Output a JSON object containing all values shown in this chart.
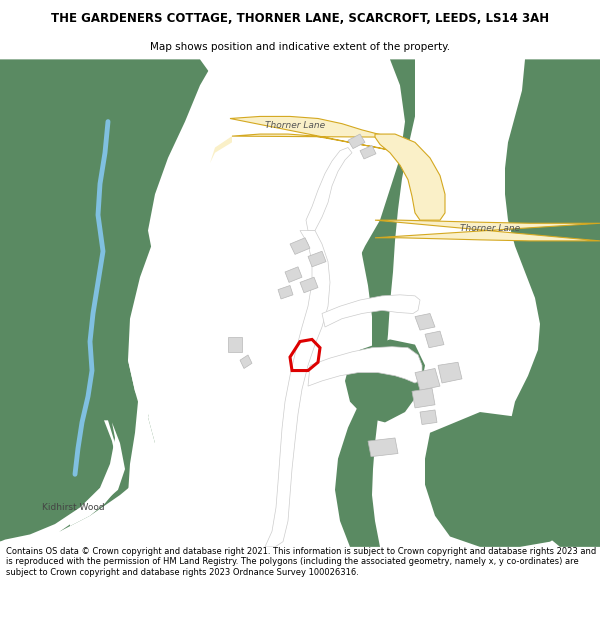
{
  "title_line1": "THE GARDENERS COTTAGE, THORNER LANE, SCARCROFT, LEEDS, LS14 3AH",
  "title_line2": "Map shows position and indicative extent of the property.",
  "footer_text": "Contains OS data © Crown copyright and database right 2021. This information is subject to Crown copyright and database rights 2023 and is reproduced with the permission of HM Land Registry. The polygons (including the associated geometry, namely x, y co-ordinates) are subject to Crown copyright and database rights 2023 Ordnance Survey 100026316.",
  "bg_color": "#ffffff",
  "map_bg": "#ffffff",
  "green_color": "#5a8a62",
  "road_fill": "#faf0c8",
  "road_border": "#d4a820",
  "building_color": "#d8d8d8",
  "building_border": "#b8b8b8",
  "water_color": "#80c0e0",
  "red_color": "#dd0000",
  "white_color": "#ffffff",
  "label_color": "#555555"
}
